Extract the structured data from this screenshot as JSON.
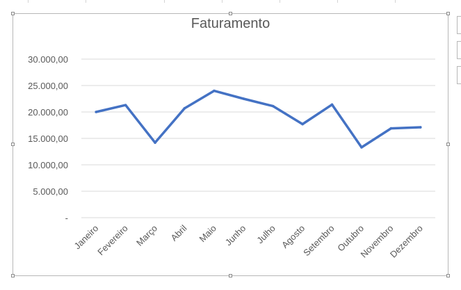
{
  "chart_data": {
    "type": "line",
    "title": "Faturamento",
    "xlabel": "",
    "ylabel": "",
    "categories": [
      "Janeiro",
      "Fevereiro",
      "Março",
      "Abril",
      "Maio",
      "Junho",
      "Julho",
      "Agosto",
      "Setembro",
      "Outubro",
      "Novembro",
      "Dezembro"
    ],
    "series": [
      {
        "values": [
          20000,
          21300,
          14200,
          20700,
          24000,
          22500,
          21100,
          17700,
          21400,
          13300,
          16900,
          17100
        ]
      }
    ],
    "ylim": [
      0,
      30000
    ],
    "yticks": [
      {
        "value": 0,
        "label": "-"
      },
      {
        "value": 5000,
        "label": "5.000,00"
      },
      {
        "value": 10000,
        "label": "10.000,00"
      },
      {
        "value": 15000,
        "label": "15.000,00"
      },
      {
        "value": 20000,
        "label": "20.000,00"
      },
      {
        "value": 25000,
        "label": "25.000,00"
      },
      {
        "value": 30000,
        "label": "30.000,00"
      }
    ],
    "grid": true,
    "legend": "none",
    "line_color": "#4472c4",
    "grid_color": "#d9d9d9"
  }
}
